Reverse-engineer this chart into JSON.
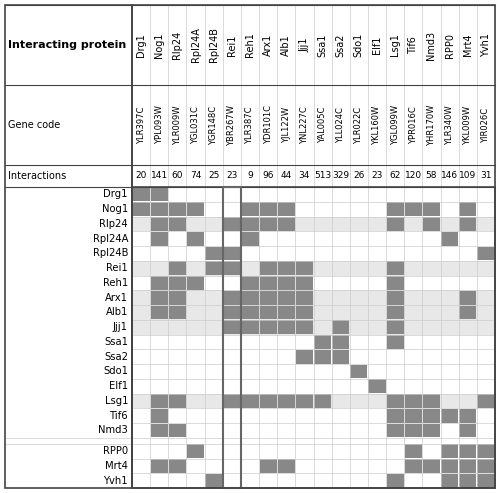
{
  "proteins": [
    "Drg1",
    "Nog1",
    "Rlp24",
    "Rpl24A",
    "Rpl24B",
    "Rei1",
    "Reh1",
    "Arx1",
    "Alb1",
    "Jjj1",
    "Ssa1",
    "Ssa2",
    "Sdo1",
    "Elf1",
    "Lsg1",
    "Tif6",
    "Nmd3",
    "RPP0",
    "Mrt4",
    "Yvh1"
  ],
  "gene_codes": [
    "YLR397C",
    "YPL093W",
    "YLR009W",
    "YGL031C",
    "YGR148C",
    "YBR267W",
    "YLR387C",
    "YDR101C",
    "YJL122W",
    "YNL227C",
    "YAL005C",
    "YLL024C",
    "YLR022C",
    "YKL160W",
    "YGL099W",
    "YPR016C",
    "YHR170W",
    "YLR340W",
    "YKL009W",
    "YIR026C"
  ],
  "interactions": [
    20,
    141,
    60,
    74,
    25,
    23,
    9,
    96,
    44,
    34,
    513,
    329,
    26,
    23,
    62,
    120,
    58,
    146,
    109,
    31
  ],
  "interaction_matrix": [
    [
      1,
      1,
      0,
      0,
      0,
      0,
      0,
      0,
      0,
      0,
      0,
      0,
      0,
      0,
      0,
      0,
      0,
      0,
      0,
      0
    ],
    [
      1,
      1,
      1,
      1,
      0,
      0,
      1,
      1,
      1,
      0,
      0,
      0,
      0,
      0,
      1,
      1,
      1,
      0,
      1,
      0
    ],
    [
      0,
      1,
      1,
      0,
      0,
      1,
      1,
      1,
      1,
      0,
      0,
      0,
      0,
      0,
      1,
      0,
      1,
      0,
      1,
      0
    ],
    [
      0,
      1,
      0,
      1,
      0,
      0,
      1,
      0,
      0,
      0,
      0,
      0,
      0,
      0,
      0,
      0,
      0,
      1,
      0,
      0
    ],
    [
      0,
      0,
      0,
      0,
      1,
      1,
      0,
      0,
      0,
      0,
      0,
      0,
      0,
      0,
      0,
      0,
      0,
      0,
      0,
      1
    ],
    [
      0,
      0,
      1,
      0,
      1,
      1,
      0,
      1,
      1,
      1,
      0,
      0,
      0,
      0,
      1,
      0,
      0,
      0,
      0,
      0
    ],
    [
      0,
      1,
      1,
      1,
      0,
      0,
      1,
      1,
      1,
      1,
      0,
      0,
      0,
      0,
      1,
      0,
      0,
      0,
      0,
      0
    ],
    [
      0,
      1,
      1,
      0,
      0,
      1,
      1,
      1,
      1,
      1,
      0,
      0,
      0,
      0,
      1,
      0,
      0,
      0,
      1,
      0
    ],
    [
      0,
      1,
      1,
      0,
      0,
      1,
      1,
      1,
      1,
      1,
      0,
      0,
      0,
      0,
      1,
      0,
      0,
      0,
      1,
      0
    ],
    [
      0,
      0,
      0,
      0,
      0,
      1,
      1,
      1,
      1,
      1,
      0,
      1,
      0,
      0,
      1,
      0,
      0,
      0,
      0,
      0
    ],
    [
      0,
      0,
      0,
      0,
      0,
      0,
      0,
      0,
      0,
      0,
      1,
      1,
      0,
      0,
      1,
      0,
      0,
      0,
      0,
      0
    ],
    [
      0,
      0,
      0,
      0,
      0,
      0,
      0,
      0,
      0,
      1,
      1,
      1,
      0,
      0,
      0,
      0,
      0,
      0,
      0,
      0
    ],
    [
      0,
      0,
      0,
      0,
      0,
      0,
      0,
      0,
      0,
      0,
      0,
      0,
      1,
      0,
      0,
      0,
      0,
      0,
      0,
      0
    ],
    [
      0,
      0,
      0,
      0,
      0,
      0,
      0,
      0,
      0,
      0,
      0,
      0,
      0,
      1,
      0,
      0,
      0,
      0,
      0,
      0
    ],
    [
      0,
      1,
      1,
      0,
      0,
      1,
      1,
      1,
      1,
      1,
      1,
      0,
      0,
      0,
      1,
      1,
      1,
      0,
      0,
      1
    ],
    [
      0,
      1,
      0,
      0,
      0,
      0,
      0,
      0,
      0,
      0,
      0,
      0,
      0,
      0,
      1,
      1,
      1,
      1,
      1,
      0
    ],
    [
      0,
      1,
      1,
      0,
      0,
      0,
      0,
      0,
      0,
      0,
      0,
      0,
      0,
      0,
      1,
      1,
      1,
      0,
      1,
      0
    ],
    [
      0,
      0,
      0,
      1,
      0,
      0,
      0,
      0,
      0,
      0,
      0,
      0,
      0,
      0,
      0,
      1,
      0,
      1,
      1,
      1
    ],
    [
      0,
      1,
      1,
      0,
      0,
      0,
      0,
      1,
      1,
      0,
      0,
      0,
      0,
      0,
      0,
      1,
      1,
      1,
      1,
      1
    ],
    [
      0,
      0,
      0,
      0,
      1,
      0,
      0,
      0,
      0,
      0,
      0,
      0,
      0,
      0,
      1,
      0,
      0,
      1,
      1,
      1
    ]
  ],
  "rei1_col_idx": 5,
  "light_gray_rows": [
    2,
    5,
    7,
    8,
    9,
    14
  ],
  "light_gray_color": "#e8e8e8",
  "dark_gray_color": "#888888",
  "grid_color": "#cccccc",
  "border_color": "#444444",
  "background_color": "#ffffff",
  "rei1_frame_color": "#666666",
  "figsize": [
    5.0,
    4.93
  ],
  "dpi": 100
}
